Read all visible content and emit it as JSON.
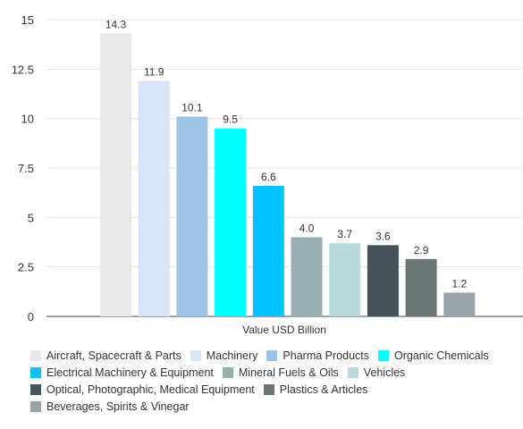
{
  "chart_data": {
    "type": "bar",
    "xlabel": "Value USD Billion",
    "ylim": [
      0,
      15
    ],
    "yticks": [
      "0",
      "2.5",
      "5",
      "7.5",
      "10",
      "12.5",
      "15"
    ],
    "series": [
      {
        "name": "Aircraft, Spacecraft & Parts",
        "value": 14.3,
        "label": "14.3",
        "color": "#e8e8e8"
      },
      {
        "name": "Machinery",
        "value": 11.9,
        "label": "11.9",
        "color": "#d6e6f7"
      },
      {
        "name": "Pharma Products",
        "value": 10.1,
        "label": "10.1",
        "color": "#9dc3e6"
      },
      {
        "name": "Organic Chemicals",
        "value": 9.5,
        "label": "9.5",
        "color": "#00ffff"
      },
      {
        "name": "Electrical Machinery & Equipment",
        "value": 6.6,
        "label": "6.6",
        "color": "#00c2ff"
      },
      {
        "name": "Mineral Fuels & Oils",
        "value": 4.0,
        "label": "4.0",
        "color": "#97aeb2"
      },
      {
        "name": "Vehicles",
        "value": 3.7,
        "label": "3.7",
        "color": "#b8d8dc"
      },
      {
        "name": "Optical, Photographic, Medical Equipment",
        "value": 3.6,
        "label": "3.6",
        "color": "#45525a"
      },
      {
        "name": "Plastics & Articles",
        "value": 2.9,
        "label": "2.9",
        "color": "#6a7676"
      },
      {
        "name": "Beverages, Spirits & Vinegar",
        "value": 1.2,
        "label": "1.2",
        "color": "#9aa4a8"
      }
    ]
  }
}
